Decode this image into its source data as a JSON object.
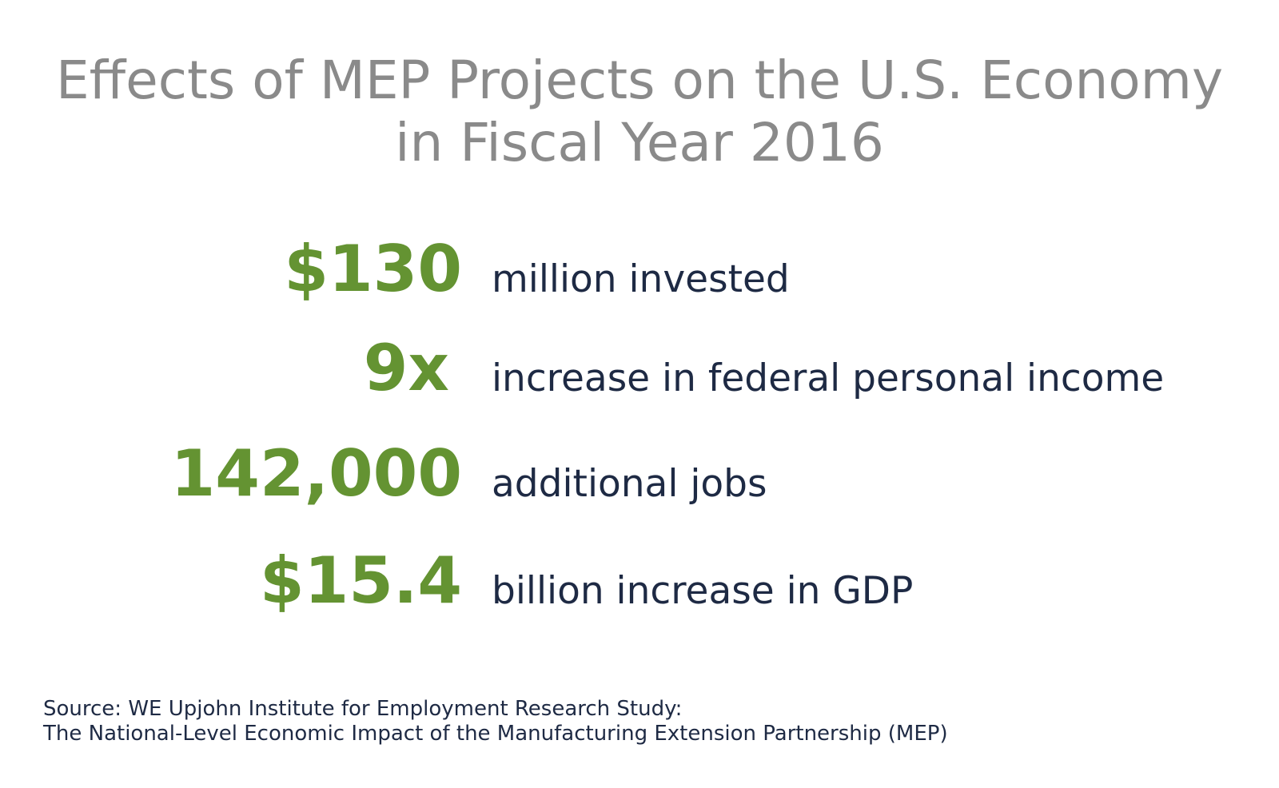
{
  "title": {
    "line1": "Effects of MEP Projects on the U.S. Economy",
    "line2": "in Fiscal Year 2016"
  },
  "stats": [
    {
      "value": "$130",
      "description": "million invested"
    },
    {
      "value": "9x",
      "description": "increase in federal personal income"
    },
    {
      "value": "142,000",
      "description": "additional jobs"
    },
    {
      "value": "$15.4",
      "description": "billion increase in GDP"
    }
  ],
  "source": {
    "line1": "Source: WE Upjohn Institute for Employment Research Study:",
    "line2": "The National-Level Economic Impact of the Manufacturing Extension Partnership (MEP)"
  },
  "colors": {
    "title": "#8a8a8a",
    "value": "#649332",
    "description": "#1e2a44",
    "background": "#ffffff"
  }
}
